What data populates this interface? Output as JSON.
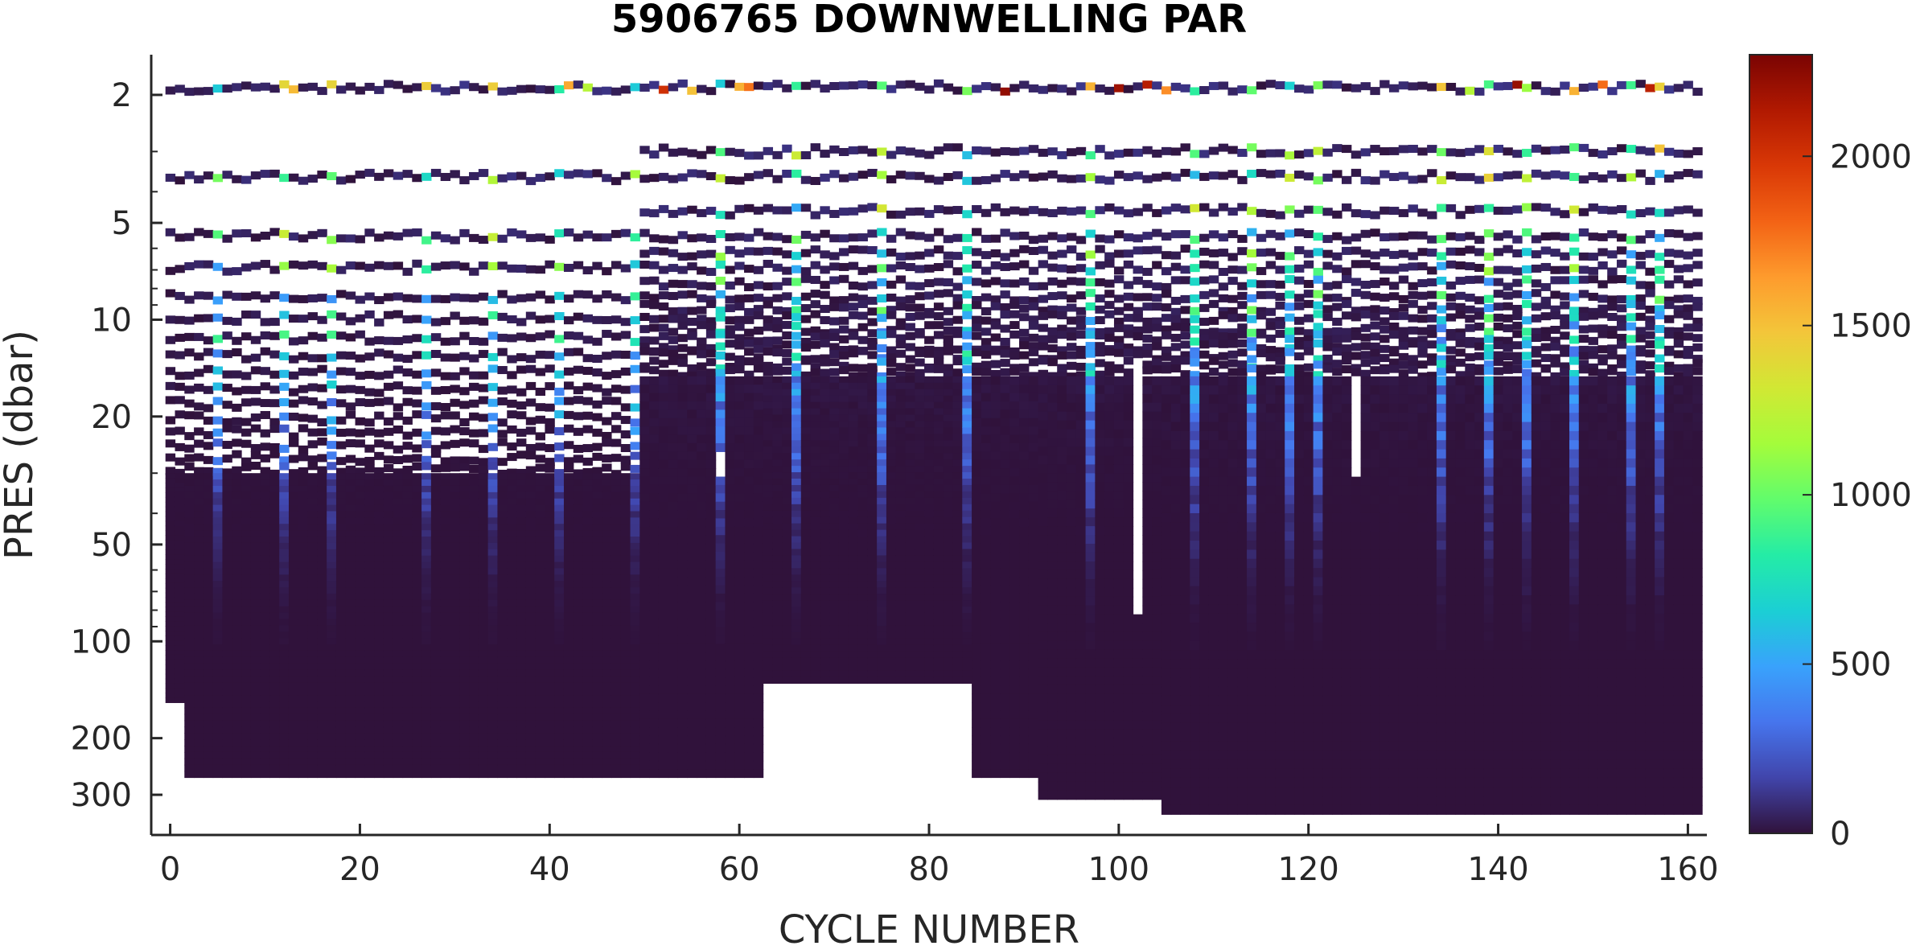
{
  "chart_data": {
    "type": "heatmap",
    "title": "5906765  DOWNWELLING PAR",
    "xlabel": "CYCLE NUMBER",
    "ylabel": "PRES (dbar)",
    "xlim": [
      -2,
      162
    ],
    "ylim": [
      1.5,
      400
    ],
    "y_scale": "log",
    "y_reversed": true,
    "x_ticks": [
      0,
      20,
      40,
      60,
      80,
      100,
      120,
      140,
      160
    ],
    "x_tick_labels": [
      "0",
      "20",
      "40",
      "60",
      "80",
      "100",
      "120",
      "140",
      "160"
    ],
    "y_ticks": [
      2,
      5,
      10,
      20,
      50,
      100,
      200,
      300
    ],
    "y_tick_labels": [
      "2",
      "5",
      "10",
      "20",
      "50",
      "100",
      "200",
      "300"
    ],
    "colorbar": {
      "range": [
        0,
        2300
      ],
      "ticks": [
        0,
        500,
        1000,
        1500,
        2000
      ],
      "tick_labels": [
        "0",
        "500",
        "1000",
        "1500",
        "2000"
      ],
      "colormap": "turbo",
      "stops": [
        "#30123b",
        "#4145ab",
        "#4675ed",
        "#39a2fc",
        "#1bcfd4",
        "#24eca6",
        "#61fc6c",
        "#a4fc3b",
        "#d1e834",
        "#f3c63a",
        "#fe9b2d",
        "#f36315",
        "#d93806",
        "#b11901",
        "#7a0403"
      ]
    },
    "grid": false,
    "cycles": {
      "first": 0,
      "last": 161
    },
    "shallow_levels_early_cycles": [
      1.9,
      3.6,
      5.5,
      6.9,
      8.5,
      9.9,
      11.4,
      12.9,
      14.6,
      16.4,
      18.3,
      20.3,
      22.4,
      24.6,
      26.9,
      29.3
    ],
    "shallow_levels_late_cycles": [
      1.9,
      3.0,
      3.6,
      4.6,
      5.5,
      6.2,
      6.9,
      7.7,
      8.5,
      9.2,
      9.9,
      10.7,
      11.4,
      12.2,
      12.9,
      13.8,
      14.6
    ],
    "continuous_profile_start_dbar": {
      "early": 30,
      "late": 15,
      "change_cycle": 50
    },
    "max_depth_segments": [
      {
        "from_cycle": 0,
        "to_cycle": 1,
        "max_pres": 155
      },
      {
        "from_cycle": 1,
        "to_cycle": 62,
        "max_pres": 265
      },
      {
        "from_cycle": 63,
        "to_cycle": 84,
        "max_pres": 135
      },
      {
        "from_cycle": 85,
        "to_cycle": 91,
        "max_pres": 265
      },
      {
        "from_cycle": 92,
        "to_cycle": 104,
        "max_pres": 310
      },
      {
        "from_cycle": 105,
        "to_cycle": 161,
        "max_pres": 345
      }
    ],
    "gaps": [
      {
        "cycle": 58,
        "pres_from": 26,
        "pres_to": 30
      },
      {
        "cycle": 102,
        "pres_from": 14,
        "pres_to": 78
      },
      {
        "cycle": 125,
        "pres_from": 16,
        "pres_to": 29
      }
    ],
    "bright_cycles": [
      5,
      12,
      17,
      27,
      34,
      41,
      49,
      58,
      66,
      75,
      84,
      97,
      108,
      114,
      118,
      121,
      134,
      139,
      143,
      148,
      154,
      157
    ],
    "value_summary": {
      "surface_max": 2300,
      "typical_near_surface_bright": [
        600,
        1600
      ],
      "typical_near_surface_dark": [
        0,
        200
      ],
      "deep_below_100dbar": 0
    }
  }
}
